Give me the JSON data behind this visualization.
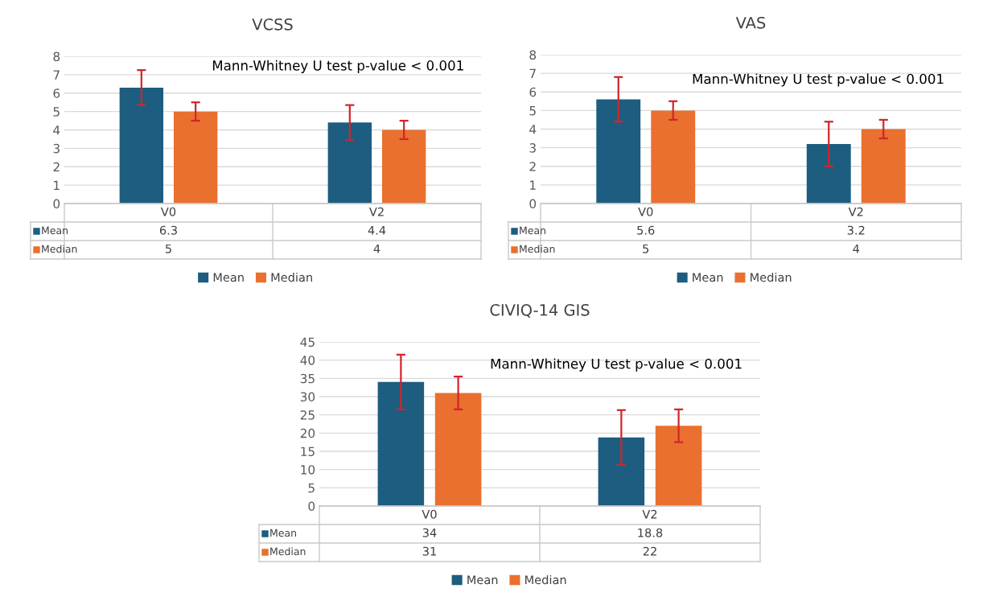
{
  "chart_data": [
    {
      "type": "bar",
      "title": "VCSS",
      "categories": [
        "V0",
        "V2"
      ],
      "ylim": [
        0,
        8
      ],
      "yticks": [
        0,
        1,
        2,
        3,
        4,
        5,
        6,
        7,
        8
      ],
      "grid": "y",
      "legend": "bottom",
      "data_labels": true,
      "annotations": [
        "Mann-Whitney U test p-value < 0.001"
      ],
      "series": [
        {
          "name": "Mean",
          "color": "#1d5d80",
          "values": [
            6.3,
            4.4
          ],
          "errors": [
            0.95,
            0.95
          ]
        },
        {
          "name": "Median",
          "color": "#e9702e",
          "values": [
            5,
            4
          ],
          "errors": [
            0.5,
            0.5
          ]
        }
      ]
    },
    {
      "type": "bar",
      "title": "VAS",
      "categories": [
        "V0",
        "V2"
      ],
      "ylim": [
        0,
        8
      ],
      "yticks": [
        0,
        1,
        2,
        3,
        4,
        5,
        6,
        7,
        8
      ],
      "grid": "y",
      "legend": "bottom",
      "data_labels": true,
      "annotations": [
        "Mann-Whitney U test p-value < 0.001"
      ],
      "series": [
        {
          "name": "Mean",
          "color": "#1d5d80",
          "values": [
            5.6,
            3.2
          ],
          "errors": [
            1.2,
            1.2
          ]
        },
        {
          "name": "Median",
          "color": "#e9702e",
          "values": [
            5,
            4
          ],
          "errors": [
            0.5,
            0.5
          ]
        }
      ]
    },
    {
      "type": "bar",
      "title": "CIVIQ-14 GIS",
      "categories": [
        "V0",
        "V2"
      ],
      "ylim": [
        0,
        45
      ],
      "yticks": [
        0,
        5,
        10,
        15,
        20,
        25,
        30,
        35,
        40,
        45
      ],
      "grid": "y",
      "legend": "bottom",
      "data_labels": true,
      "annotations": [
        "Mann-Whitney U test p-value < 0.001"
      ],
      "series": [
        {
          "name": "Mean",
          "color": "#1d5d80",
          "values": [
            34,
            18.8
          ],
          "errors": [
            7.5,
            7.5
          ]
        },
        {
          "name": "Median",
          "color": "#e9702e",
          "values": [
            31,
            22
          ],
          "errors": [
            4.5,
            4.5
          ]
        }
      ]
    }
  ]
}
